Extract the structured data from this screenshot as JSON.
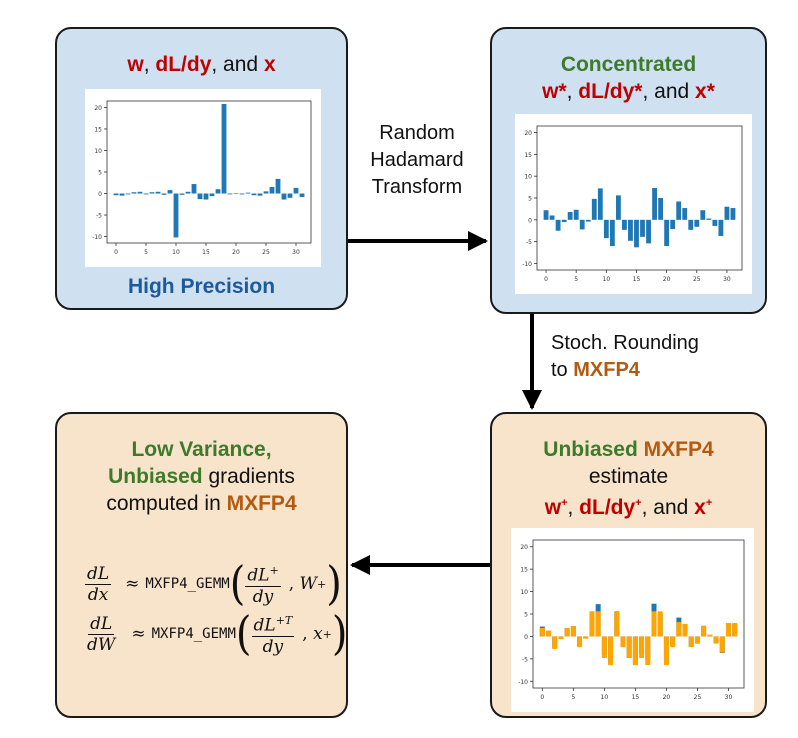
{
  "top_left": {
    "title_parts": [
      "w",
      ", ",
      "dL/dy",
      ", and ",
      "x"
    ],
    "caption": "High Precision"
  },
  "top_right": {
    "title_line1": "Concentrated",
    "title_parts": [
      "w*",
      ", ",
      "dL/dy*",
      ", and ",
      "x*"
    ]
  },
  "bottom_right": {
    "title_a": "Unbiased",
    "title_b": "MXFP4",
    "title_line2": "estimate",
    "title_parts": [
      "w",
      "+",
      ", ",
      "dL/dy",
      "+",
      ", and ",
      "x",
      "+"
    ]
  },
  "bottom_left": {
    "line1": "Low Variance,",
    "line2_a": "Unbiased",
    "line2_b": " gradients",
    "line3_a": "computed in ",
    "line3_b": "MXFP4",
    "formula1": {
      "num": "dL",
      "den": "dx",
      "approx": "≈",
      "fn": "MXFP4_GEMM",
      "arg_num": "dL",
      "arg_sup": "+",
      "arg_den": "dy",
      "arg2": "W",
      "arg2_sup": "+"
    },
    "formula2": {
      "num": "dL",
      "den": "dW",
      "approx": "≈",
      "fn": "MXFP4_GEMM",
      "arg_num": "dL",
      "arg_sup": "+T",
      "arg_den": "dy",
      "arg2": "x",
      "arg2_sup": "+"
    }
  },
  "arrows": {
    "transform_label_lines": [
      "Random",
      "Hadamard",
      "Transform"
    ],
    "rounding_label_line1": "Stoch. Rounding",
    "rounding_label_line2_a": "to ",
    "rounding_label_line2_b": "MXFP4"
  },
  "colors": {
    "box_blue": "#cfe0f1",
    "box_tan": "#f8e3cb",
    "bar_blue": "#1f77b4",
    "bar_orange": "#ffa500",
    "red": "#c00000",
    "green": "#3d7a2a",
    "orange": "#b35a11",
    "navy": "#1b5a9c"
  },
  "chart_data": [
    {
      "type": "bar",
      "x": [
        0,
        1,
        2,
        3,
        4,
        5,
        6,
        7,
        8,
        9,
        10,
        11,
        12,
        13,
        14,
        15,
        16,
        17,
        18,
        19,
        20,
        21,
        22,
        23,
        24,
        25,
        26,
        27,
        28,
        29,
        30,
        31
      ],
      "values": [
        -0.4,
        -0.5,
        -0.2,
        0.3,
        0.4,
        -0.2,
        0.3,
        0.4,
        -0.3,
        0.8,
        -10.2,
        -0.3,
        0.4,
        2.2,
        -1.3,
        -1.4,
        -0.6,
        1.0,
        20.8,
        -0.2,
        0.1,
        -0.2,
        0.2,
        -0.4,
        -0.5,
        0.5,
        1.5,
        3.4,
        -1.4,
        -1.0,
        1.3,
        -0.8
      ],
      "xticks": [
        0,
        5,
        10,
        15,
        20,
        25,
        30
      ],
      "yticks": [
        -10,
        -5,
        0,
        5,
        10,
        15,
        20
      ],
      "xlim": [
        -1.5,
        32.5
      ],
      "ylim": [
        -11.5,
        21.5
      ]
    },
    {
      "type": "bar",
      "x": [
        0,
        1,
        2,
        3,
        4,
        5,
        6,
        7,
        8,
        9,
        10,
        11,
        12,
        13,
        14,
        15,
        16,
        17,
        18,
        19,
        20,
        21,
        22,
        23,
        24,
        25,
        26,
        27,
        28,
        29,
        30,
        31
      ],
      "values": [
        2.2,
        1.0,
        -2.5,
        -0.5,
        1.8,
        2.3,
        -2.2,
        -0.4,
        4.8,
        7.2,
        -4.2,
        -6.0,
        5.6,
        -2.3,
        -4.8,
        -6.3,
        -3.9,
        -5.4,
        7.3,
        5.0,
        -6.0,
        -2.1,
        4.2,
        2.7,
        -2.3,
        -1.6,
        2.2,
        0.3,
        -1.4,
        -3.7,
        3.0,
        2.7
      ],
      "xticks": [
        0,
        5,
        10,
        15,
        20,
        25,
        30
      ],
      "yticks": [
        -10,
        -5,
        0,
        5,
        10,
        15,
        20
      ],
      "xlim": [
        -1.5,
        32.5
      ],
      "ylim": [
        -11.5,
        21.5
      ]
    },
    {
      "type": "bar",
      "x": [
        0,
        1,
        2,
        3,
        4,
        5,
        6,
        7,
        8,
        9,
        10,
        11,
        12,
        13,
        14,
        15,
        16,
        17,
        18,
        19,
        20,
        21,
        22,
        23,
        24,
        25,
        26,
        27,
        28,
        29,
        30,
        31
      ],
      "series": [
        {
          "values": [
            2.2,
            1.0,
            -2.5,
            -0.5,
            1.8,
            2.3,
            -2.2,
            -0.4,
            4.8,
            7.2,
            -4.2,
            -6.0,
            5.6,
            -2.3,
            -4.8,
            -6.3,
            -3.9,
            -5.4,
            7.3,
            5.0,
            -6.0,
            -2.1,
            4.2,
            2.7,
            -2.3,
            -1.6,
            2.2,
            0.3,
            -1.4,
            -3.7,
            3.0,
            2.7
          ]
        },
        {
          "values": [
            1.9,
            1.3,
            -2.8,
            -0.6,
            1.9,
            2.3,
            -2.4,
            -0.5,
            5.6,
            5.6,
            -4.8,
            -6.4,
            5.6,
            -2.4,
            -4.8,
            -6.4,
            -4.8,
            -6.4,
            5.6,
            5.6,
            -6.4,
            -2.4,
            3.2,
            2.8,
            -2.4,
            -1.6,
            2.4,
            0.4,
            -1.6,
            -3.6,
            3.0,
            3.0
          ]
        }
      ],
      "xticks": [
        0,
        5,
        10,
        15,
        20,
        25,
        30
      ],
      "yticks": [
        -10,
        -5,
        0,
        5,
        10,
        15,
        20
      ],
      "xlim": [
        -1.5,
        32.5
      ],
      "ylim": [
        -11.5,
        21.5
      ]
    }
  ]
}
